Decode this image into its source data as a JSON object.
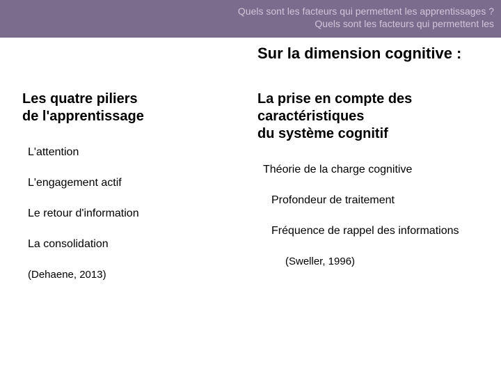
{
  "banner": {
    "background_color": "#7a6c8c",
    "text_color": "#cfc6d9",
    "line1": "Quels sont les facteurs qui permettent les apprentissages ?",
    "line2": "Quels sont les facteurs qui permettent les"
  },
  "section_title": "Sur la dimension cognitive :",
  "section_title_color": "#000000",
  "left": {
    "heading": "Les quatre piliers\nde l'apprentissage",
    "items": [
      "L'attention",
      "L'engagement actif",
      "Le retour d'information",
      "La consolidation"
    ],
    "citation": "(Dehaene, 2013)"
  },
  "right": {
    "heading": "La prise en compte des caractéristiques\ndu système cognitif",
    "items": [
      "Théorie de la charge cognitive",
      "Profondeur de traitement",
      "Fréquence de rappel des informations"
    ],
    "citation": "(Sweller, 1996)"
  },
  "text_color": "#000000"
}
